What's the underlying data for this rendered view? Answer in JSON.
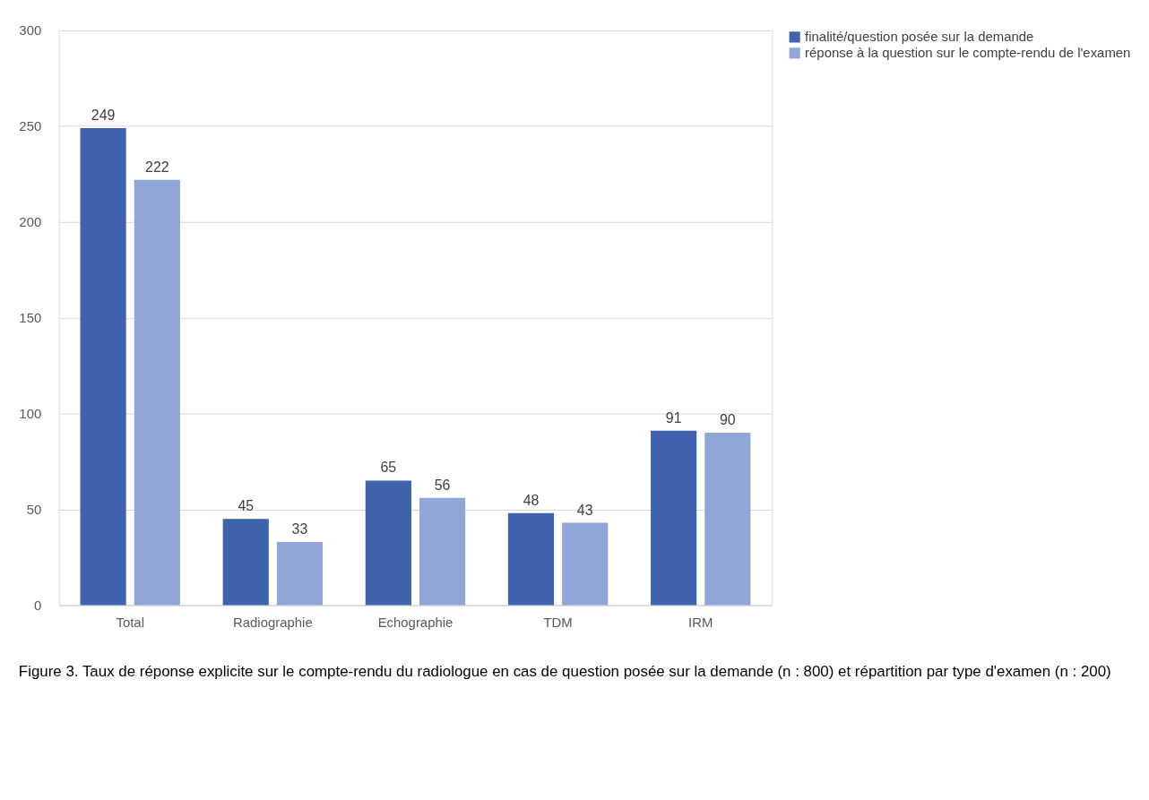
{
  "chart_data": {
    "type": "bar",
    "categories": [
      "Total",
      "Radiographie",
      "Echographie",
      "TDM",
      "IRM"
    ],
    "series": [
      {
        "name": "finalité/question posée sur la demande",
        "color": "#3f64ad",
        "values": [
          249,
          45,
          65,
          48,
          91
        ]
      },
      {
        "name": "réponse à la question sur le compte-rendu de l'examen",
        "color": "#8fa6d6",
        "values": [
          222,
          33,
          56,
          43,
          90
        ]
      }
    ],
    "ylim": [
      0,
      300
    ],
    "yticks": [
      0,
      50,
      100,
      150,
      200,
      250,
      300
    ],
    "grid": "y",
    "legend": "right",
    "data_labels": true,
    "annotations": [
      "Figure 3. Taux de réponse explicite sur le compte-rendu du radiologue en cas de question posée sur la demande (n : 800) et répartition par type d'examen (n : 200)"
    ]
  }
}
